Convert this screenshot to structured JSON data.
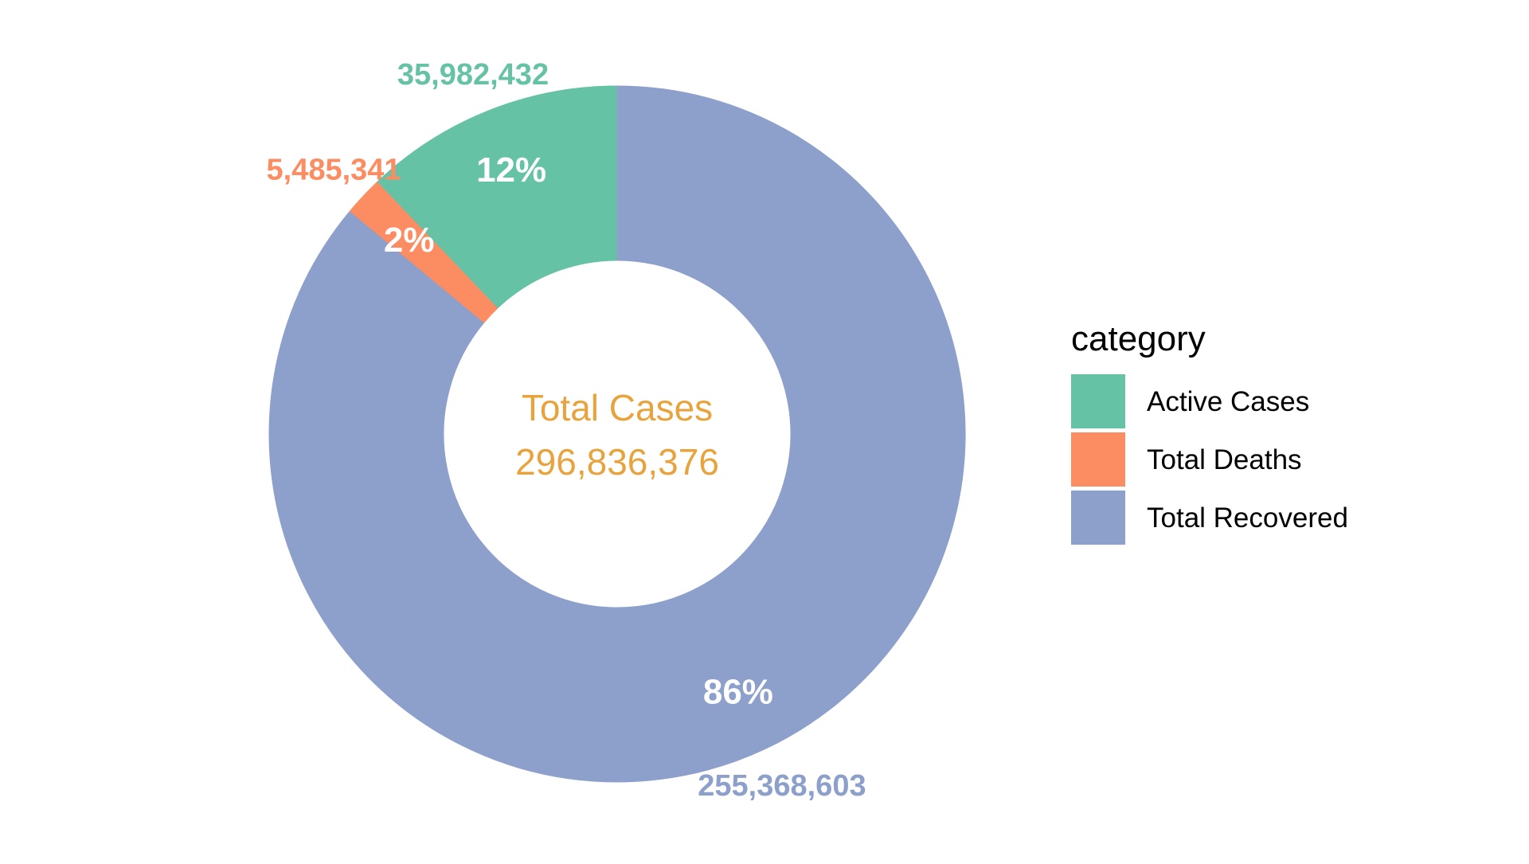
{
  "chart_data": {
    "type": "pie",
    "donut": true,
    "categories": [
      "Active Cases",
      "Total Deaths",
      "Total Recovered"
    ],
    "values": [
      35982432,
      5485341,
      255368603
    ],
    "value_labels": [
      "35,982,432",
      "5,485,341",
      "255,368,603"
    ],
    "percent_labels": [
      "12%",
      "2%",
      "86%"
    ],
    "colors": [
      "#66c2a5",
      "#fc8d62",
      "#8da0cb"
    ],
    "center": {
      "title": "Total Cases",
      "value": "296,836,376",
      "color": "#e8a33d"
    },
    "legend": {
      "title": "category",
      "placement": "right",
      "items": [
        "Active Cases",
        "Total Deaths",
        "Total Recovered"
      ]
    },
    "start_angle": "top",
    "direction": "clockwise-from-top, drawn counter-clockwise"
  }
}
